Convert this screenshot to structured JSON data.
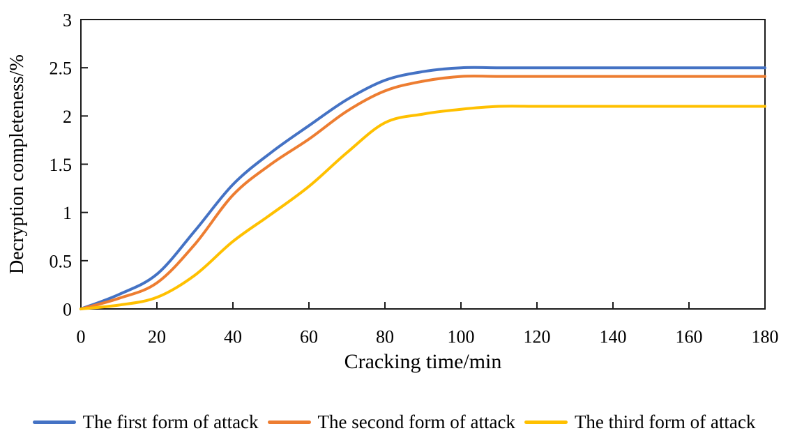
{
  "figure": {
    "background_color": "#ffffff",
    "text_color": "#000000",
    "axis_color": "#1a1a1a"
  },
  "chart_data": {
    "type": "line",
    "title": "",
    "xlabel": "Cracking time/min",
    "ylabel": "Decryption completeness/%",
    "xlim": [
      0,
      180
    ],
    "ylim": [
      0,
      3
    ],
    "xticks": [
      0,
      20,
      40,
      60,
      80,
      100,
      120,
      140,
      160,
      180
    ],
    "xtick_labels": [
      "0",
      "20",
      "40",
      "60",
      "80",
      "100",
      "120",
      "140",
      "160",
      "180"
    ],
    "yticks": [
      0,
      0.5,
      1,
      1.5,
      2,
      2.5,
      3
    ],
    "ytick_labels": [
      "0",
      "0.5",
      "1",
      "1.5",
      "2",
      "2.5",
      "3"
    ],
    "grid": false,
    "plot_border": true,
    "tick_direction": "in",
    "legend_position": "bottom",
    "x": [
      0,
      10,
      20,
      30,
      40,
      50,
      60,
      70,
      80,
      90,
      100,
      110,
      120,
      130,
      140,
      150,
      160,
      170,
      180
    ],
    "series": [
      {
        "name": "The first form of attack",
        "color": "#4472C4",
        "values": [
          0,
          0.15,
          0.36,
          0.81,
          1.29,
          1.62,
          1.9,
          2.17,
          2.37,
          2.46,
          2.5,
          2.5,
          2.5,
          2.5,
          2.5,
          2.5,
          2.5,
          2.5,
          2.5
        ]
      },
      {
        "name": "The second form of attack",
        "color": "#ED7D31",
        "values": [
          0,
          0.11,
          0.27,
          0.67,
          1.18,
          1.5,
          1.76,
          2.05,
          2.26,
          2.36,
          2.41,
          2.41,
          2.41,
          2.41,
          2.41,
          2.41,
          2.41,
          2.41,
          2.41
        ]
      },
      {
        "name": "The third form of attack",
        "color": "#FFC000",
        "values": [
          0,
          0.04,
          0.12,
          0.35,
          0.7,
          0.98,
          1.27,
          1.62,
          1.93,
          2.02,
          2.07,
          2.1,
          2.1,
          2.1,
          2.1,
          2.1,
          2.1,
          2.1,
          2.1
        ]
      }
    ]
  }
}
